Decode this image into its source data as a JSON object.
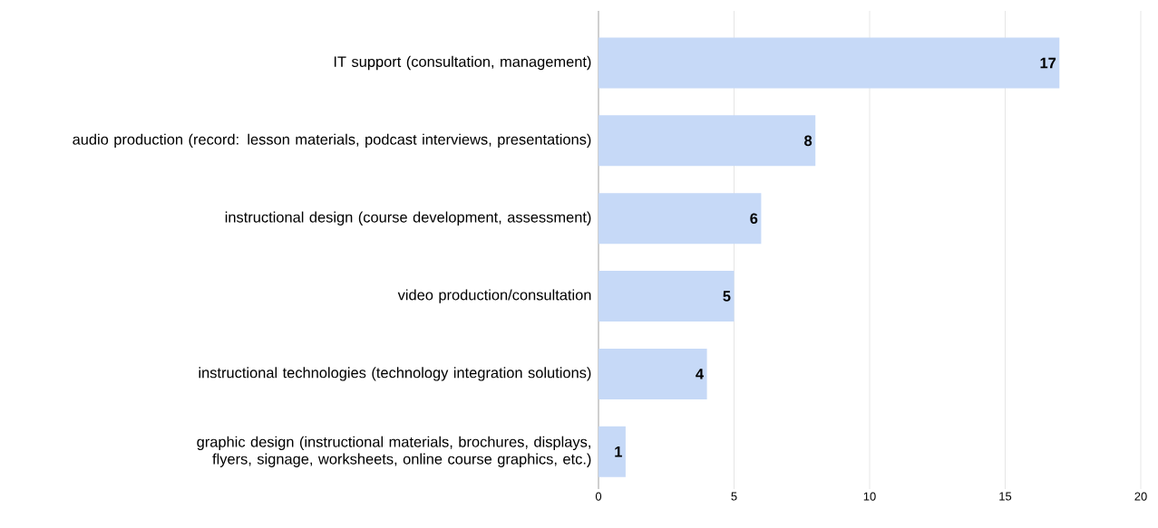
{
  "chart_data": {
    "type": "bar",
    "orientation": "horizontal",
    "categories": [
      "IT support (consultation, management)",
      "audio production (record: lesson materials, podcast interviews, presentations)",
      "instructional design (course development, assessment)",
      "video production/consultation",
      "instructional technologies (technology integration solutions)",
      "graphic design (instructional materials, brochures, displays, flyers, signage, worksheets, online course graphics, etc.)"
    ],
    "values": [
      17,
      8,
      6,
      5,
      4,
      1
    ],
    "color": "#c6d9f7",
    "xlim": [
      0,
      20
    ],
    "xticks": [
      0,
      5,
      10,
      15,
      20
    ],
    "grid": "x",
    "data_labels": true
  }
}
